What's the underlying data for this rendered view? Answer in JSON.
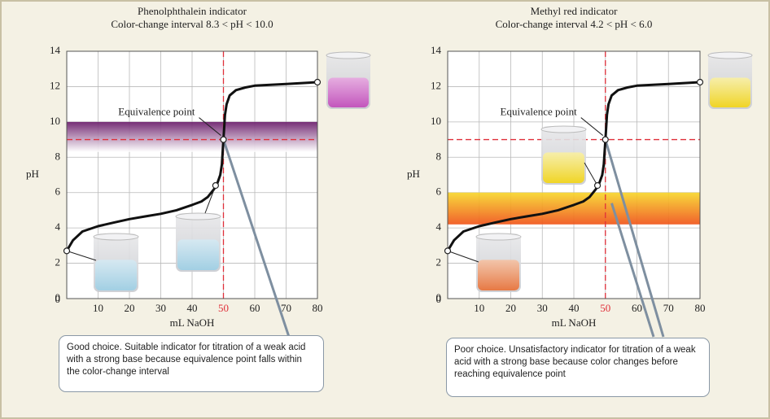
{
  "chart_data": [
    {
      "type": "line",
      "title": "Phenolphthalein indicator",
      "subtitle": "Color-change interval 8.3 < pH < 10.0",
      "xlabel": "mL NaOH",
      "ylabel": "pH",
      "x": [
        0,
        2,
        5,
        10,
        15,
        20,
        25,
        30,
        35,
        40,
        43,
        45,
        47,
        48,
        49,
        49.5,
        50,
        50.5,
        51,
        52,
        54,
        57,
        60,
        70,
        80
      ],
      "values": [
        2.7,
        3.3,
        3.8,
        4.1,
        4.3,
        4.5,
        4.65,
        4.8,
        5.0,
        5.3,
        5.5,
        5.75,
        6.2,
        6.5,
        7.0,
        7.6,
        9.0,
        10.4,
        11.0,
        11.5,
        11.8,
        11.95,
        12.05,
        12.15,
        12.25
      ],
      "color": "#111111",
      "markers": {
        "x": [
          0,
          47.5,
          50,
          80
        ],
        "values": [
          2.7,
          6.4,
          9.0,
          12.25
        ]
      },
      "xlim": [
        0,
        80
      ],
      "ylim": [
        0,
        14
      ],
      "xticks": [
        10,
        20,
        30,
        40,
        50,
        60,
        70,
        80
      ],
      "yticks": [
        0,
        2,
        4,
        6,
        8,
        10,
        12,
        14
      ],
      "grid": true,
      "band": {
        "range": [
          8.3,
          10.0
        ],
        "colors": [
          "#6a1c6a",
          "#ffffff"
        ]
      },
      "equivalence": {
        "x": 50,
        "y": 9.0,
        "label": "Equivalence point",
        "color": "#e0303a"
      },
      "note": "Good choice. Suitable indicator for titration of a weak acid with a strong base because equivalence point falls within the color-change interval"
    },
    {
      "type": "line",
      "title": "Methyl red indicator",
      "subtitle": "Color-change interval 4.2 < pH < 6.0",
      "xlabel": "mL NaOH",
      "ylabel": "pH",
      "x": [
        0,
        2,
        5,
        10,
        15,
        20,
        25,
        30,
        35,
        40,
        43,
        45,
        47,
        48,
        49,
        49.5,
        50,
        50.5,
        51,
        52,
        54,
        57,
        60,
        70,
        80
      ],
      "values": [
        2.7,
        3.3,
        3.8,
        4.1,
        4.3,
        4.5,
        4.65,
        4.8,
        5.0,
        5.3,
        5.5,
        5.75,
        6.2,
        6.5,
        7.0,
        7.6,
        9.0,
        10.4,
        11.0,
        11.5,
        11.8,
        11.95,
        12.05,
        12.15,
        12.25
      ],
      "color": "#111111",
      "markers": {
        "x": [
          0,
          47.5,
          50,
          80
        ],
        "values": [
          2.7,
          6.4,
          9.0,
          12.25
        ]
      },
      "xlim": [
        0,
        80
      ],
      "ylim": [
        0,
        14
      ],
      "xticks": [
        10,
        20,
        30,
        40,
        50,
        60,
        70,
        80
      ],
      "yticks": [
        0,
        2,
        4,
        6,
        8,
        10,
        12,
        14
      ],
      "grid": true,
      "band": {
        "range": [
          4.2,
          6.0
        ],
        "colors": [
          "#f7d62a",
          "#f0541a"
        ]
      },
      "equivalence": {
        "x": 50,
        "y": 9.0,
        "label": "Equivalence point",
        "color": "#e0303a"
      },
      "note": "Poor choice. Unsatisfactory indicator for titration of a weak acid with a strong base because color changes before reaching equivalence point"
    }
  ]
}
